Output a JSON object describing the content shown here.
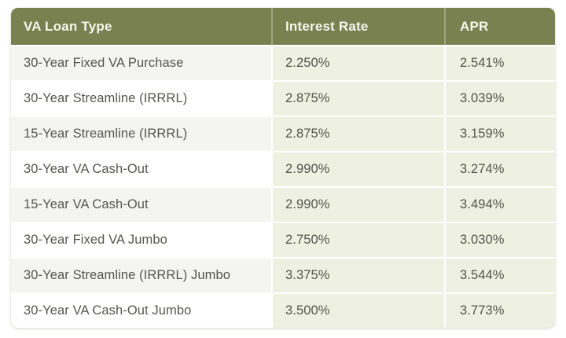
{
  "colors": {
    "header_bg": "#7a8150",
    "header_text": "#f6f7ee",
    "rate_cell_bg": "#eef0e1",
    "alt_row_bg": "#f4f4f1",
    "row_bg": "#ffffff",
    "data_text": "#54564f"
  },
  "chart_data": {
    "type": "table",
    "columns": [
      "VA Loan Type",
      "Interest Rate",
      "APR"
    ],
    "rows": [
      {
        "loan_type": "30-Year Fixed VA Purchase",
        "interest_rate": "2.250%",
        "apr": "2.541%"
      },
      {
        "loan_type": "30-Year Streamline (IRRRL)",
        "interest_rate": "2.875%",
        "apr": "3.039%"
      },
      {
        "loan_type": "15-Year Streamline (IRRRL)",
        "interest_rate": "2.875%",
        "apr": "3.159%"
      },
      {
        "loan_type": "30-Year VA Cash-Out",
        "interest_rate": "2.990%",
        "apr": "3.274%"
      },
      {
        "loan_type": "15-Year VA Cash-Out",
        "interest_rate": "2.990%",
        "apr": "3.494%"
      },
      {
        "loan_type": "30-Year Fixed VA Jumbo",
        "interest_rate": "2.750%",
        "apr": "3.030%"
      },
      {
        "loan_type": "30-Year Streamline (IRRRL) Jumbo",
        "interest_rate": "3.375%",
        "apr": "3.544%"
      },
      {
        "loan_type": "30-Year VA Cash-Out Jumbo",
        "interest_rate": "3.500%",
        "apr": "3.773%"
      }
    ],
    "interest_rates_pct": [
      2.25,
      2.875,
      2.875,
      2.99,
      2.99,
      2.75,
      3.375,
      3.5
    ],
    "apr_pct": [
      2.541,
      3.039,
      3.159,
      3.274,
      3.494,
      3.03,
      3.544,
      3.773
    ]
  }
}
